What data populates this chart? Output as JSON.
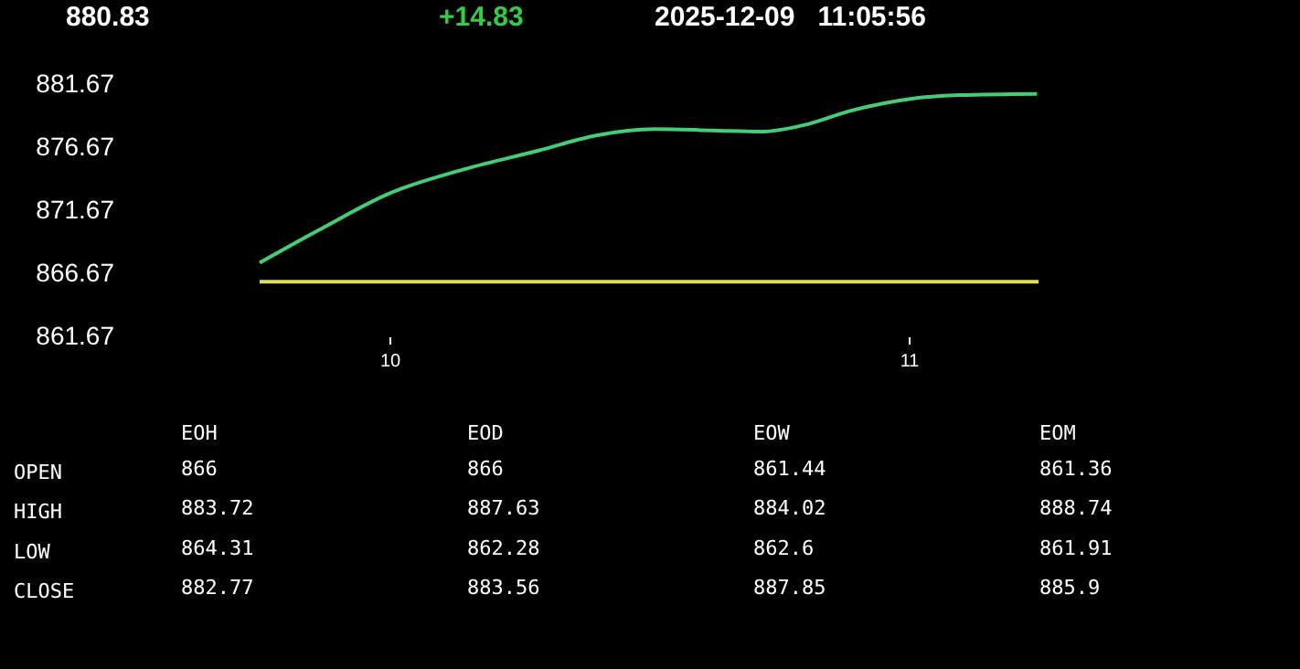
{
  "chart_data": [
    {
      "type": "line",
      "title": "880.83",
      "subtitle": "+14.83",
      "annotations": [
        "2025-12-09   11:05:56"
      ],
      "series": [
        {
          "color": "#44cc77",
          "x": [
            9.75,
            9.873,
            10.0,
            10.143,
            10.287,
            10.398,
            10.51,
            10.621,
            10.717,
            10.796,
            10.892,
            11.003,
            11.099,
            11.247
          ],
          "values": [
            867.5,
            870.3,
            873.0,
            874.9,
            876.4,
            877.6,
            878.1,
            878.0,
            877.9,
            878.4,
            879.6,
            880.5,
            880.8,
            880.9
          ]
        }
      ],
      "ref_lines": [
        {
          "axis": "y",
          "value": 866,
          "color": "#dddd66"
        }
      ],
      "xlim": [
        9.75,
        11.25
      ],
      "xticks": [
        10,
        11
      ],
      "ylim": [
        861.67,
        881.67
      ],
      "yticks": [
        861.67,
        866.67,
        871.67,
        876.67,
        881.67
      ],
      "grid": false,
      "marker": "none"
    },
    {
      "type": "heatmap",
      "data_labels": true,
      "categories": [
        "EOH",
        "EOD",
        "EOW",
        "EOM"
      ],
      "y_categories": [
        "OPEN",
        "HIGH",
        "LOW",
        "CLOSE"
      ],
      "cells": [
        [
          866,
          866,
          861.44,
          861.36
        ],
        [
          883.72,
          887.63,
          884.02,
          888.74
        ],
        [
          864.31,
          862.28,
          862.6,
          861.91
        ],
        [
          882.77,
          883.56,
          887.85,
          885.9
        ]
      ]
    }
  ]
}
